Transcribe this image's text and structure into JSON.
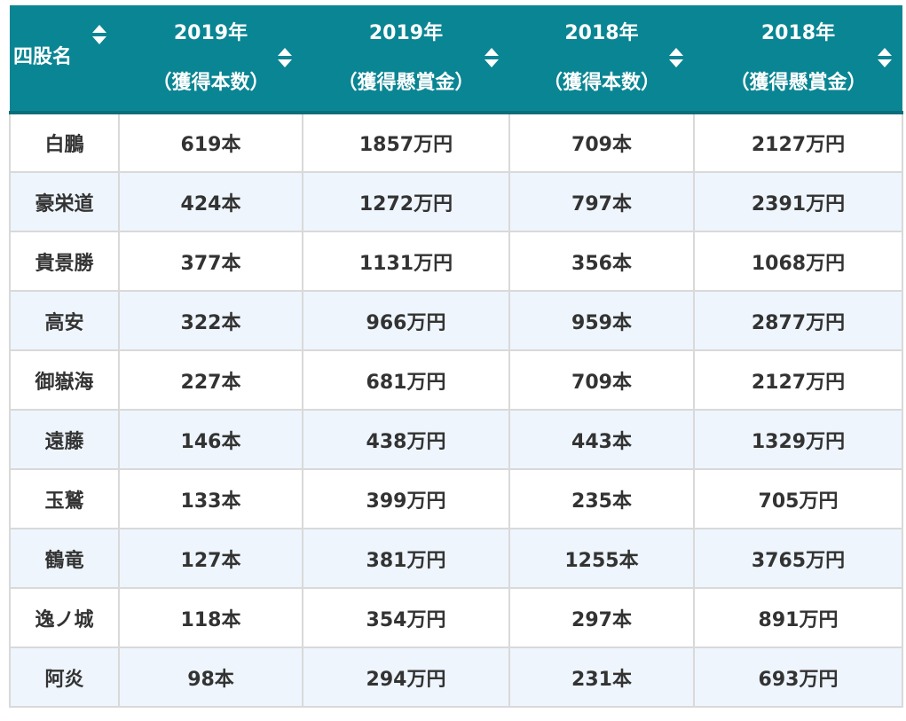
{
  "table": {
    "headers": [
      {
        "line1": "四股名",
        "line2": ""
      },
      {
        "line1": "2019年",
        "line2": "（獲得本数）"
      },
      {
        "line1": "2019年",
        "line2": "（獲得懸賞金）"
      },
      {
        "line1": "2018年",
        "line2": "（獲得本数）"
      },
      {
        "line1": "2018年",
        "line2": "（獲得懸賞金）"
      }
    ],
    "rows": [
      [
        "白鵬",
        "619本",
        "1857万円",
        "709本",
        "2127万円"
      ],
      [
        "豪栄道",
        "424本",
        "1272万円",
        "797本",
        "2391万円"
      ],
      [
        "貴景勝",
        "377本",
        "1131万円",
        "356本",
        "1068万円"
      ],
      [
        "高安",
        "322本",
        "966万円",
        "959本",
        "2877万円"
      ],
      [
        "御嶽海",
        "227本",
        "681万円",
        "709本",
        "2127万円"
      ],
      [
        "遠藤",
        "146本",
        "438万円",
        "443本",
        "1329万円"
      ],
      [
        "玉鷲",
        "133本",
        "399万円",
        "235本",
        "705万円"
      ],
      [
        "鶴竜",
        "127本",
        "381万円",
        "1255本",
        "3765万円"
      ],
      [
        "逸ノ城",
        "118本",
        "354万円",
        "297本",
        "891万円"
      ],
      [
        "阿炎",
        "98本",
        "294万円",
        "231本",
        "693万円"
      ]
    ]
  },
  "icons": {
    "sort": "sort-updown-icon"
  },
  "colors": {
    "header_bg": "#0a8593",
    "header_text": "#ffffff",
    "row_alt_bg": "#eef5fc",
    "border": "#d9d9d9",
    "cell_text": "#333333"
  }
}
